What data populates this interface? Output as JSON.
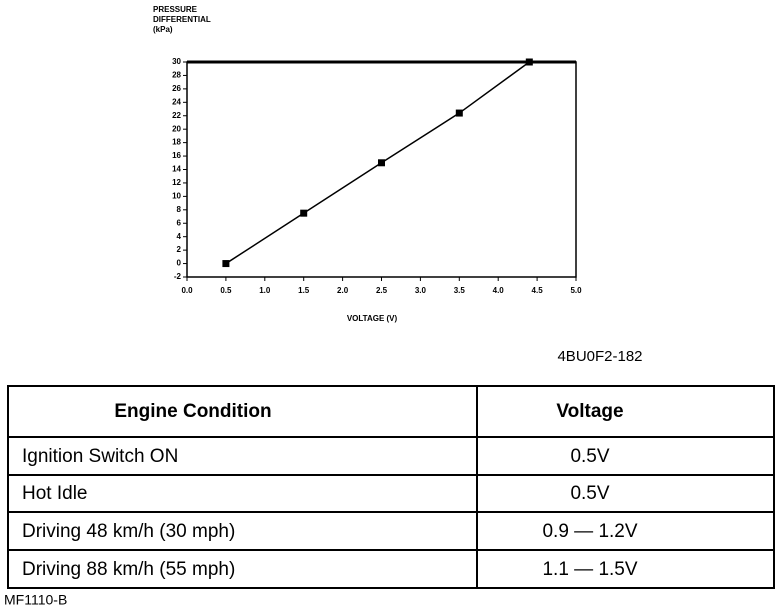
{
  "chart_data": {
    "type": "line",
    "y_label": [
      "PRESSURE",
      "DIFFERENTIAL",
      "(kPa)"
    ],
    "x_label": "VOLTAGE (V)",
    "x": [
      0.5,
      1.5,
      2.5,
      3.5,
      4.4
    ],
    "values": [
      0,
      7.5,
      15,
      22.4,
      30
    ],
    "color": "#000000",
    "xlim": [
      0,
      5
    ],
    "xticks": [
      {
        "value": 0,
        "label": "0.0"
      },
      0.5,
      {
        "value": 1,
        "label": "1.0"
      },
      1.5,
      {
        "value": 2,
        "label": "2.0"
      },
      2.5,
      {
        "value": 3,
        "label": "3.0"
      },
      3.5,
      {
        "value": 4,
        "label": "4.0"
      },
      4.5,
      {
        "value": 5,
        "label": "5.0"
      }
    ],
    "ylim": [
      -2,
      30
    ],
    "yticks": [
      -2,
      0,
      2,
      4,
      6,
      8,
      10,
      12,
      14,
      16,
      18,
      20,
      22,
      24,
      26,
      28,
      30
    ],
    "grid": false
  },
  "figure_code": "4BU0F2-182",
  "table": {
    "header": [
      "Engine Condition",
      "Voltage"
    ],
    "rows": [
      [
        "Ignition Switch ON",
        "0.5V"
      ],
      [
        "Hot Idle",
        "0.5V"
      ],
      [
        "Driving 48 km/h (30 mph)",
        "0.9 — 1.2V"
      ],
      [
        "Driving 88 km/h (55 mph)",
        "1.1 — 1.5V"
      ]
    ]
  },
  "footer": "MF1110-B"
}
